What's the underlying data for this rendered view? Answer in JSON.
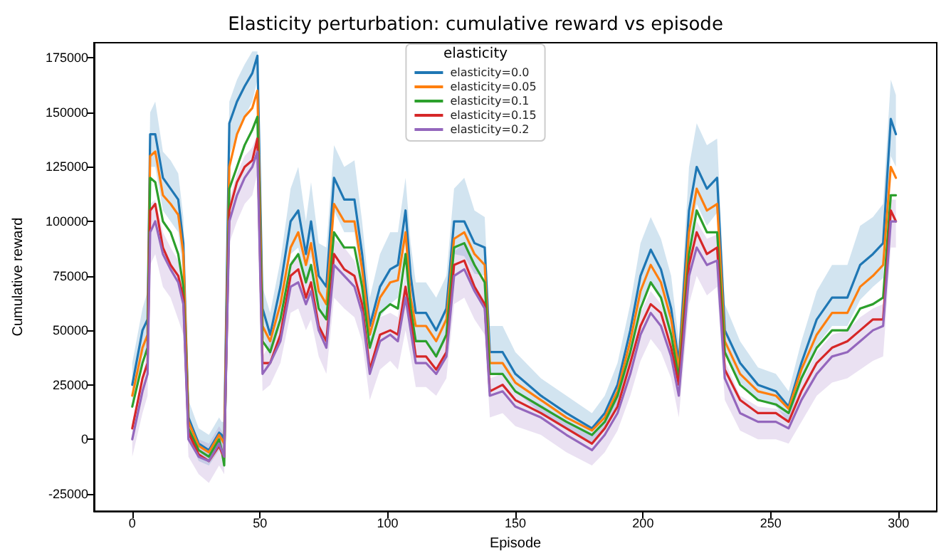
{
  "chart_data": {
    "type": "line",
    "title": "Elasticity perturbation: cumulative reward vs episode",
    "xlabel": "Episode",
    "ylabel": "Cumulative reward",
    "legend_title": "elasticity",
    "legend": "top",
    "grid": false,
    "marker": "none",
    "line_style": "solid",
    "xlim": [
      -15,
      315
    ],
    "xticks": [
      0,
      50,
      100,
      150,
      200,
      250,
      300
    ],
    "ylim": [
      -33000,
      182000
    ],
    "yticks": [
      -25000,
      0,
      25000,
      50000,
      75000,
      100000,
      125000,
      150000,
      175000
    ],
    "x": [
      0,
      4,
      6,
      7,
      9,
      12,
      15,
      18,
      20,
      22,
      26,
      30,
      34,
      35,
      36,
      38,
      41,
      44,
      47,
      49,
      51,
      54,
      58,
      62,
      65,
      68,
      70,
      73,
      76,
      79,
      83,
      87,
      90,
      93,
      97,
      101,
      104,
      107,
      109,
      111,
      115,
      119,
      123,
      126,
      130,
      134,
      138,
      140,
      145,
      150,
      160,
      170,
      180,
      185,
      190,
      195,
      199,
      203,
      207,
      211,
      214,
      218,
      221,
      225,
      229,
      232,
      238,
      245,
      252,
      257,
      262,
      268,
      274,
      280,
      285,
      290,
      294,
      297,
      299
    ],
    "series": [
      {
        "name": "elasticity=0.0",
        "color": "#1f77b4",
        "values": [
          25000,
          50000,
          55000,
          140000,
          140000,
          120000,
          115000,
          110000,
          90000,
          10000,
          -2000,
          -5000,
          3000,
          2000,
          0,
          145000,
          155000,
          162000,
          168000,
          176000,
          60000,
          48000,
          70000,
          100000,
          105000,
          85000,
          100000,
          75000,
          70000,
          120000,
          110000,
          110000,
          85000,
          52000,
          70000,
          78000,
          80000,
          105000,
          75000,
          58000,
          58000,
          50000,
          60000,
          100000,
          100000,
          90000,
          88000,
          40000,
          40000,
          30000,
          20000,
          12000,
          5000,
          12000,
          25000,
          50000,
          75000,
          87000,
          78000,
          60000,
          35000,
          105000,
          125000,
          115000,
          120000,
          50000,
          35000,
          25000,
          22000,
          15000,
          35000,
          55000,
          65000,
          65000,
          80000,
          85000,
          90000,
          147000,
          140000
        ],
        "upper": [
          35000,
          60000,
          68000,
          150000,
          155000,
          132000,
          128000,
          122000,
          102000,
          18000,
          5000,
          2000,
          10000,
          8000,
          8000,
          155000,
          165000,
          172000,
          178000,
          178000,
          70000,
          58000,
          82000,
          115000,
          125000,
          100000,
          118000,
          90000,
          88000,
          135000,
          125000,
          128000,
          100000,
          65000,
          85000,
          95000,
          95000,
          120000,
          90000,
          72000,
          72000,
          65000,
          75000,
          115000,
          120000,
          105000,
          102000,
          52000,
          52000,
          40000,
          28000,
          20000,
          12000,
          20000,
          35000,
          62000,
          90000,
          102000,
          92000,
          75000,
          45000,
          125000,
          145000,
          135000,
          138000,
          62000,
          45000,
          33000,
          30000,
          22000,
          45000,
          68000,
          80000,
          80000,
          98000,
          102000,
          108000,
          165000,
          158000
        ],
        "lower": [
          15000,
          38000,
          42000,
          125000,
          125000,
          105000,
          100000,
          95000,
          75000,
          2000,
          -10000,
          -12000,
          -5000,
          -5000,
          -8000,
          130000,
          140000,
          148000,
          155000,
          165000,
          48000,
          38000,
          58000,
          85000,
          88000,
          70000,
          84000,
          62000,
          55000,
          105000,
          95000,
          95000,
          70000,
          40000,
          56000,
          62000,
          65000,
          90000,
          60000,
          45000,
          45000,
          38000,
          46000,
          85000,
          84000,
          76000,
          75000,
          30000,
          30000,
          22000,
          12000,
          5000,
          -2000,
          5000,
          16000,
          38000,
          62000,
          72000,
          65000,
          47000,
          26000,
          88000,
          108000,
          98000,
          104000,
          40000,
          26000,
          18000,
          15000,
          8000,
          26000,
          43000,
          52000,
          52000,
          64000,
          70000,
          74000,
          130000,
          125000
        ]
      },
      {
        "name": "elasticity=0.05",
        "color": "#ff7f0e",
        "values": [
          20000,
          42000,
          48000,
          130000,
          132000,
          112000,
          108000,
          103000,
          85000,
          8000,
          -3000,
          -6000,
          2000,
          0,
          -2000,
          125000,
          140000,
          148000,
          152000,
          160000,
          52000,
          45000,
          62000,
          88000,
          95000,
          80000,
          90000,
          68000,
          62000,
          108000,
          100000,
          100000,
          78000,
          48000,
          65000,
          72000,
          73000,
          95000,
          65000,
          52000,
          52000,
          45000,
          55000,
          92000,
          95000,
          85000,
          80000,
          35000,
          35000,
          26000,
          18000,
          10000,
          4000,
          10000,
          22000,
          45000,
          68000,
          80000,
          72000,
          55000,
          32000,
          95000,
          115000,
          105000,
          108000,
          45000,
          30000,
          22000,
          20000,
          14000,
          32000,
          48000,
          58000,
          58000,
          70000,
          75000,
          80000,
          125000,
          120000
        ]
      },
      {
        "name": "elasticity=0.1",
        "color": "#2ca02c",
        "values": [
          15000,
          35000,
          42000,
          120000,
          118000,
          100000,
          95000,
          85000,
          70000,
          5000,
          -5000,
          -8000,
          0,
          -5000,
          -12000,
          115000,
          125000,
          135000,
          142000,
          148000,
          45000,
          40000,
          55000,
          80000,
          85000,
          72000,
          80000,
          60000,
          55000,
          95000,
          88000,
          88000,
          70000,
          42000,
          58000,
          62000,
          60000,
          85000,
          60000,
          45000,
          45000,
          38000,
          48000,
          88000,
          90000,
          80000,
          72000,
          30000,
          30000,
          22000,
          15000,
          8000,
          2000,
          8000,
          20000,
          40000,
          60000,
          72000,
          65000,
          48000,
          28000,
          85000,
          105000,
          95000,
          95000,
          40000,
          25000,
          18000,
          16000,
          12000,
          28000,
          42000,
          50000,
          50000,
          60000,
          62000,
          65000,
          112000,
          112000
        ]
      },
      {
        "name": "elasticity=0.15",
        "color": "#d62728",
        "values": [
          5000,
          28000,
          35000,
          105000,
          108000,
          88000,
          80000,
          75000,
          65000,
          3000,
          -7000,
          -10000,
          -3000,
          -6000,
          -8000,
          105000,
          118000,
          125000,
          128000,
          138000,
          35000,
          35000,
          48000,
          75000,
          78000,
          65000,
          72000,
          52000,
          45000,
          85000,
          78000,
          75000,
          62000,
          32000,
          48000,
          50000,
          48000,
          70000,
          55000,
          38000,
          38000,
          32000,
          40000,
          80000,
          82000,
          70000,
          62000,
          22000,
          25000,
          18000,
          12000,
          5000,
          -2000,
          5000,
          15000,
          35000,
          52000,
          62000,
          58000,
          42000,
          25000,
          80000,
          95000,
          85000,
          88000,
          32000,
          18000,
          12000,
          12000,
          8000,
          22000,
          35000,
          42000,
          45000,
          50000,
          55000,
          55000,
          105000,
          100000
        ]
      },
      {
        "name": "elasticity=0.2",
        "color": "#9467bd",
        "values": [
          0,
          22000,
          30000,
          95000,
          100000,
          85000,
          78000,
          72000,
          62000,
          0,
          -8000,
          -10000,
          -2000,
          -5000,
          -8000,
          100000,
          112000,
          120000,
          125000,
          132000,
          30000,
          35000,
          45000,
          70000,
          72000,
          62000,
          68000,
          50000,
          42000,
          80000,
          75000,
          70000,
          58000,
          30000,
          45000,
          48000,
          45000,
          65000,
          50000,
          35000,
          35000,
          30000,
          38000,
          75000,
          78000,
          68000,
          60000,
          20000,
          22000,
          15000,
          10000,
          2000,
          -5000,
          2000,
          12000,
          30000,
          48000,
          58000,
          52000,
          38000,
          20000,
          75000,
          88000,
          80000,
          82000,
          28000,
          12000,
          8000,
          8000,
          5000,
          18000,
          30000,
          38000,
          40000,
          45000,
          50000,
          52000,
          100000,
          100000
        ],
        "upper": [
          8000,
          30000,
          40000,
          108000,
          110000,
          95000,
          88000,
          82000,
          72000,
          8000,
          0,
          -2000,
          6000,
          4000,
          2000,
          110000,
          122000,
          130000,
          134000,
          140000,
          38000,
          44000,
          55000,
          82000,
          84000,
          74000,
          80000,
          62000,
          54000,
          92000,
          88000,
          82000,
          70000,
          40000,
          56000,
          58000,
          56000,
          78000,
          62000,
          46000,
          45000,
          40000,
          48000,
          86000,
          90000,
          80000,
          72000,
          28000,
          30000,
          22000,
          16000,
          8000,
          2000,
          8000,
          20000,
          40000,
          58000,
          68000,
          62000,
          48000,
          28000,
          86000,
          100000,
          92000,
          94000,
          36000,
          20000,
          15000,
          14000,
          11000,
          26000,
          40000,
          48000,
          50000,
          56000,
          60000,
          62000,
          110000,
          110000
        ],
        "lower": [
          -8000,
          12000,
          20000,
          80000,
          85000,
          70000,
          65000,
          55000,
          48000,
          -8000,
          -16000,
          -20000,
          -12000,
          -14000,
          -16000,
          90000,
          100000,
          108000,
          112000,
          122000,
          22000,
          25000,
          35000,
          58000,
          60000,
          50000,
          55000,
          38000,
          30000,
          65000,
          60000,
          56000,
          45000,
          18000,
          32000,
          36000,
          32000,
          50000,
          38000,
          24000,
          24000,
          20000,
          28000,
          62000,
          65000,
          55000,
          48000,
          10000,
          12000,
          6000,
          2000,
          -6000,
          -12000,
          -6000,
          4000,
          20000,
          36000,
          46000,
          40000,
          28000,
          10000,
          62000,
          75000,
          66000,
          70000,
          18000,
          4000,
          0,
          0,
          -2000,
          8000,
          20000,
          26000,
          28000,
          32000,
          36000,
          38000,
          88000,
          88000
        ]
      }
    ]
  }
}
